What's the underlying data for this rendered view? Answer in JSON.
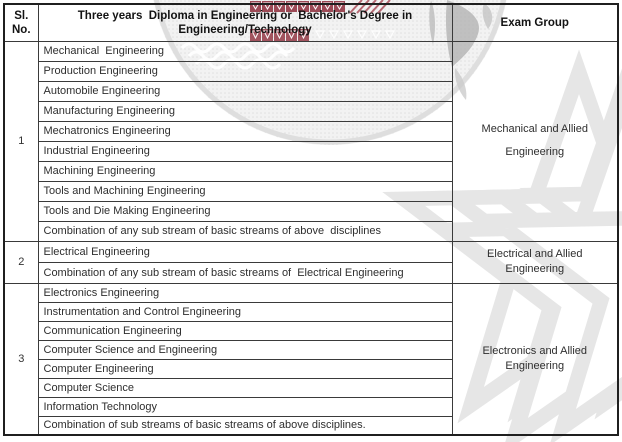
{
  "colors": {
    "page_background": "#ffffff",
    "table_border": "#1f1f1f",
    "header_text": "#131313",
    "body_text": "#2e2e2e",
    "watermark_red": "#8a2433",
    "watermark_gray": "#c9c9c9",
    "watermark_light": "#f2f2f2"
  },
  "table": {
    "columns": [
      {
        "id": "sl-no",
        "label_lines": [
          "Sl.",
          "No."
        ]
      },
      {
        "id": "qualification",
        "label_lines": [
          "Three years  Diploma in Engineering or  Bachelor's Degree in",
          "Engineering/Technology"
        ]
      },
      {
        "id": "exam-group",
        "label_lines": [
          "Exam Group"
        ]
      }
    ],
    "groups": [
      {
        "sl_no": "1",
        "exam_group_lines": [
          "Mechanical and Allied",
          "Engineering"
        ],
        "exam_spacing": "wide",
        "subjects": [
          "Mechanical  Engineering",
          "Production Engineering",
          "Automobile Engineering",
          "Manufacturing Engineering",
          "Mechatronics Engineering",
          "Industrial Engineering",
          "Machining Engineering",
          "Tools and Machining Engineering",
          "Tools and Die Making Engineering",
          "Combination of any sub stream of basic streams of above  disciplines"
        ]
      },
      {
        "sl_no": "2",
        "exam_group_lines": [
          "Electrical and Allied",
          "Engineering"
        ],
        "exam_spacing": "normal",
        "subjects": [
          "Electrical Engineering",
          "Combination of any sub stream of basic streams of  Electrical Engineering"
        ]
      },
      {
        "sl_no": "3",
        "exam_group_lines": [
          "Electronics and Allied",
          "Engineering"
        ],
        "exam_spacing": "normal",
        "subjects": [
          "Electronics Engineering",
          "Instrumentation and Control Engineering",
          "Communication Engineering",
          "Computer Science and Engineering",
          "Computer Engineering",
          "Computer Science",
          "Information Technology",
          "Combination of sub streams of basic streams of above disciplines."
        ]
      }
    ]
  }
}
